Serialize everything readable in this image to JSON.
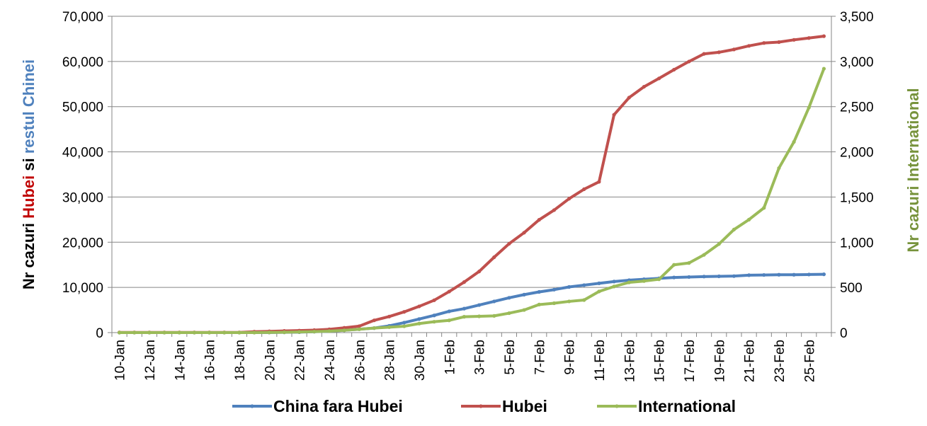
{
  "chart_data": {
    "type": "line",
    "title": "",
    "xlabel": "",
    "categories": [
      "10-Jan",
      "11-Jan",
      "12-Jan",
      "13-Jan",
      "14-Jan",
      "15-Jan",
      "16-Jan",
      "17-Jan",
      "18-Jan",
      "19-Jan",
      "20-Jan",
      "21-Jan",
      "22-Jan",
      "23-Jan",
      "24-Jan",
      "25-Jan",
      "26-Jan",
      "27-Jan",
      "28-Jan",
      "29-Jan",
      "30-Jan",
      "31-Jan",
      "1-Feb",
      "2-Feb",
      "3-Feb",
      "4-Feb",
      "5-Feb",
      "6-Feb",
      "7-Feb",
      "8-Feb",
      "9-Feb",
      "10-Feb",
      "11-Feb",
      "12-Feb",
      "13-Feb",
      "14-Feb",
      "15-Feb",
      "16-Feb",
      "17-Feb",
      "18-Feb",
      "19-Feb",
      "20-Feb",
      "21-Feb",
      "22-Feb",
      "23-Feb",
      "24-Feb",
      "25-Feb",
      "26-Feb"
    ],
    "x_tick_labels": [
      "10-Jan",
      "12-Jan",
      "14-Jan",
      "16-Jan",
      "18-Jan",
      "20-Jan",
      "22-Jan",
      "24-Jan",
      "26-Jan",
      "28-Jan",
      "30-Jan",
      "1-Feb",
      "3-Feb",
      "5-Feb",
      "7-Feb",
      "9-Feb",
      "11-Feb",
      "13-Feb",
      "15-Feb",
      "17-Feb",
      "19-Feb",
      "21-Feb",
      "23-Feb",
      "25-Feb"
    ],
    "y_left": {
      "title_parts": [
        {
          "text": "Nr cazuri ",
          "color": "#000000"
        },
        {
          "text": "Hubei",
          "color": "#C00000"
        },
        {
          "text": " si ",
          "color": "#000000"
        },
        {
          "text": "restul Chinei",
          "color": "#4F81BD"
        }
      ],
      "ylim": [
        0,
        70000
      ],
      "ticks": [
        0,
        10000,
        20000,
        30000,
        40000,
        50000,
        60000,
        70000
      ],
      "tick_labels": [
        "0",
        "10,000",
        "20,000",
        "30,000",
        "40,000",
        "50,000",
        "60,000",
        "70,000"
      ]
    },
    "y_right": {
      "title": "Nr cazuri International",
      "title_color": "#77933C",
      "ylim": [
        0,
        3500
      ],
      "ticks": [
        0,
        500,
        1000,
        1500,
        2000,
        2500,
        3000,
        3500
      ],
      "tick_labels": [
        "0",
        "500",
        "1,000",
        "1,500",
        "2,000",
        "2,500",
        "3,000",
        "3,500"
      ]
    },
    "grid": true,
    "legend_position": "bottom",
    "series": [
      {
        "name": "China fara Hubei",
        "color": "#4F81BD",
        "axis": "left",
        "values": [
          0,
          0,
          0,
          0,
          0,
          0,
          0,
          0,
          0,
          10,
          20,
          50,
          100,
          200,
          300,
          500,
          750,
          1000,
          1500,
          2200,
          3000,
          3800,
          4700,
          5300,
          6100,
          6900,
          7700,
          8400,
          9000,
          9500,
          10100,
          10500,
          10900,
          11300,
          11600,
          11800,
          12000,
          12200,
          12300,
          12400,
          12450,
          12500,
          12700,
          12750,
          12800,
          12800,
          12850,
          12900
        ]
      },
      {
        "name": "Hubei",
        "color": "#C0504D",
        "axis": "left",
        "values": [
          41,
          41,
          41,
          41,
          41,
          41,
          41,
          41,
          45,
          198,
          270,
          375,
          444,
          549,
          729,
          1052,
          1423,
          2714,
          3554,
          4586,
          5806,
          7153,
          9074,
          11177,
          13522,
          16678,
          19665,
          22112,
          24953,
          27100,
          29631,
          31728,
          33366,
          48206,
          51986,
          54406,
          56249,
          58182,
          59989,
          61682,
          62031,
          62662,
          63454,
          64084,
          64287,
          64786,
          65187,
          65596
        ]
      },
      {
        "name": "International",
        "color": "#9BBB59",
        "axis": "right",
        "values": [
          0,
          0,
          0,
          0,
          0,
          0,
          0,
          0,
          0,
          0,
          2,
          4,
          7,
          11,
          16,
          25,
          37,
          50,
          60,
          70,
          100,
          120,
          135,
          175,
          180,
          185,
          215,
          250,
          310,
          325,
          345,
          360,
          455,
          510,
          555,
          570,
          590,
          750,
          770,
          860,
          980,
          1140,
          1250,
          1380,
          1820,
          2110,
          2490,
          2920
        ]
      }
    ]
  }
}
